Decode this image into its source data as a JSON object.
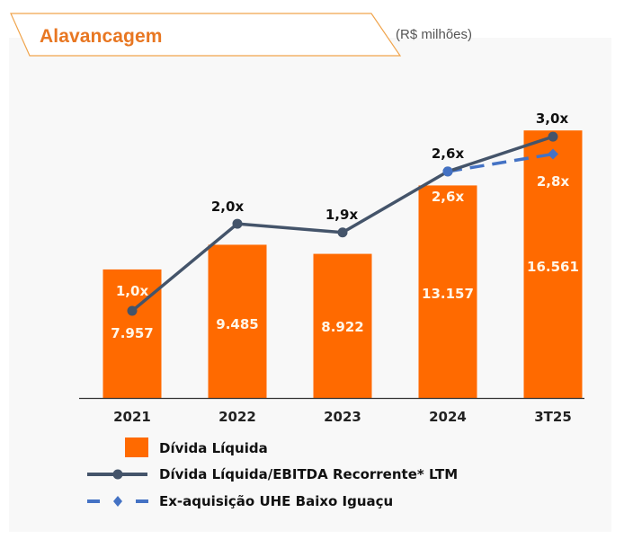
{
  "header": {
    "title": "Alavancagem",
    "unit": "(R$ milhões)"
  },
  "colors": {
    "bar": "#ff6a00",
    "title": "#e87722",
    "line": "#44546a",
    "dashed": "#4472c4",
    "panel": "#f8f8f8"
  },
  "chart_data": {
    "type": "bar",
    "title": "Alavancagem",
    "subtitle": "(R$ milhões)",
    "xlabel": "",
    "ylabel": "",
    "categories": [
      "2021",
      "2022",
      "2023",
      "2024",
      "3T25"
    ],
    "ylim": [
      0,
      21300
    ],
    "y2lim": [
      0,
      3.95
    ],
    "grid": false,
    "legend_position": "bottom",
    "series": [
      {
        "name": "Dívida Líquida",
        "type": "bar",
        "axis": "y",
        "values": [
          7957,
          9485,
          8922,
          13157,
          16561
        ],
        "labels": [
          "7.957",
          "9.485",
          "8.922",
          "13.157",
          "16.561"
        ]
      },
      {
        "name": "Dívida Líquida/EBITDA Recorrente* LTM",
        "type": "line",
        "axis": "y2",
        "values": [
          1.0,
          2.0,
          1.9,
          2.6,
          3.0
        ],
        "labels": [
          "1,0x",
          "2,0x",
          "1,9x",
          "2,6x",
          "3,0x"
        ]
      },
      {
        "name": "Ex-aquisição UHE Baixo Iguaçu",
        "type": "line-dashed",
        "axis": "y2",
        "values": [
          null,
          null,
          null,
          2.6,
          2.8
        ],
        "labels": [
          null,
          null,
          null,
          "2,6x",
          "2,8x"
        ]
      }
    ]
  }
}
